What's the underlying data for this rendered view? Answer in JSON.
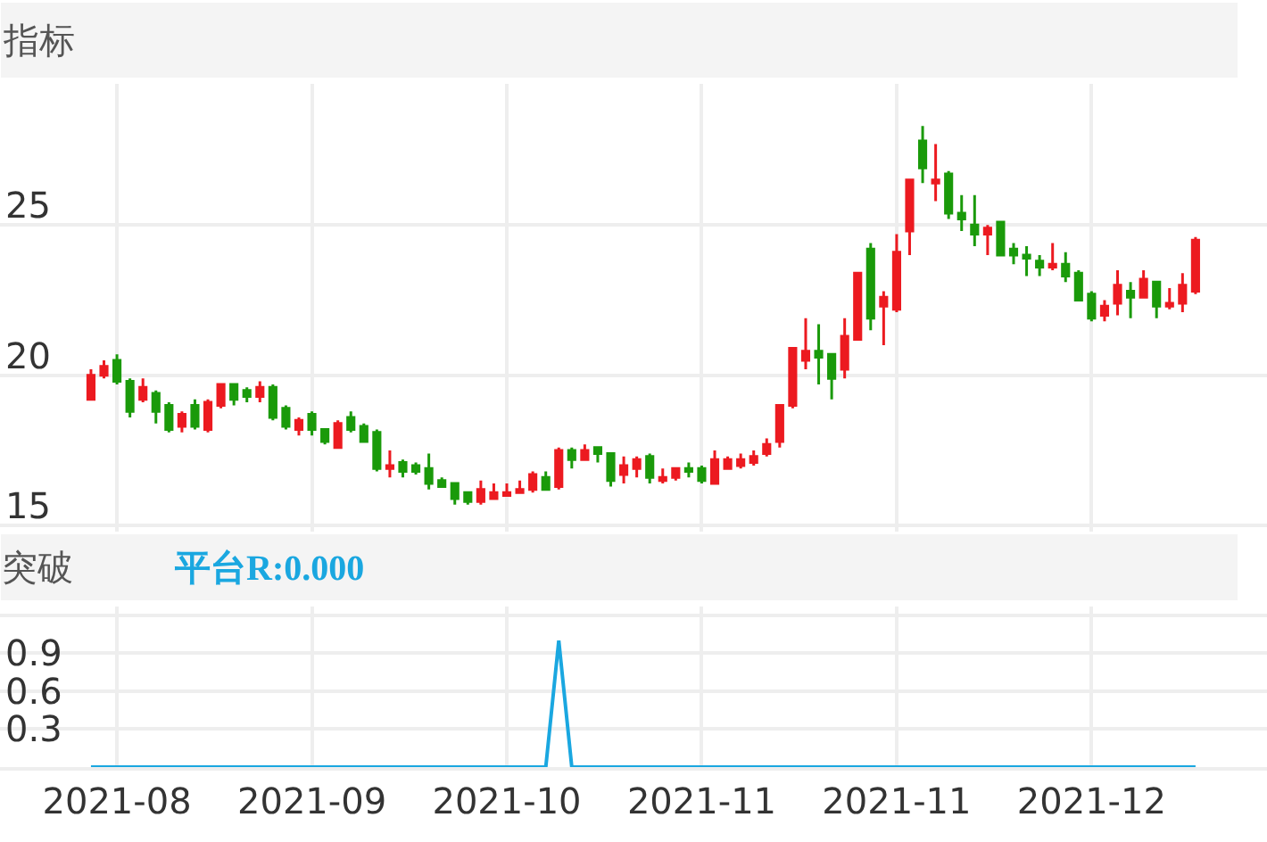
{
  "chart_data": [
    {
      "type": "candlestick",
      "title": "指标",
      "grid": true,
      "tick_labels": "y",
      "ylim": [
        14.8,
        29.7
      ],
      "yticks": [
        15,
        20,
        25
      ],
      "categories": [
        null,
        null,
        "2021-08",
        null,
        null,
        null,
        null,
        null,
        null,
        null,
        null,
        null,
        null,
        null,
        null,
        null,
        null,
        "2021-09",
        null,
        null,
        null,
        null,
        null,
        null,
        null,
        null,
        null,
        null,
        null,
        null,
        null,
        null,
        "2021-10",
        null,
        null,
        null,
        null,
        null,
        null,
        null,
        null,
        null,
        null,
        null,
        null,
        null,
        null,
        "2021-11",
        null,
        null,
        null,
        null,
        null,
        null,
        null,
        null,
        null,
        null,
        null,
        null,
        null,
        null,
        "2021-11",
        null,
        null,
        null,
        null,
        null,
        null,
        null,
        null,
        null,
        null,
        null,
        null,
        null,
        null,
        "2021-12",
        null,
        null,
        null,
        null,
        null,
        null,
        null,
        null
      ],
      "ohlc": [
        [
          19.2,
          20.2,
          19.2,
          20.0
        ],
        [
          20.0,
          20.5,
          19.9,
          20.3
        ],
        [
          20.5,
          20.7,
          19.7,
          19.8
        ],
        [
          19.8,
          19.9,
          18.6,
          18.8
        ],
        [
          19.2,
          19.9,
          19.1,
          19.6
        ],
        [
          19.4,
          19.5,
          18.4,
          18.8
        ],
        [
          19.0,
          19.1,
          18.1,
          18.2
        ],
        [
          18.3,
          18.8,
          18.1,
          18.7
        ],
        [
          19.0,
          19.2,
          18.2,
          18.3
        ],
        [
          18.2,
          19.2,
          18.1,
          19.1
        ],
        [
          19.0,
          19.7,
          18.9,
          19.7
        ],
        [
          19.7,
          19.7,
          19.0,
          19.2
        ],
        [
          19.5,
          19.6,
          19.1,
          19.3
        ],
        [
          19.3,
          19.8,
          19.1,
          19.6
        ],
        [
          19.6,
          19.7,
          18.5,
          18.6
        ],
        [
          18.9,
          19.0,
          18.2,
          18.3
        ],
        [
          18.2,
          18.6,
          18.0,
          18.5
        ],
        [
          18.7,
          18.8,
          18.0,
          18.2
        ],
        [
          18.2,
          18.2,
          17.7,
          17.8
        ],
        [
          17.6,
          18.5,
          17.6,
          18.4
        ],
        [
          18.6,
          18.8,
          18.1,
          18.2
        ],
        [
          18.3,
          18.4,
          17.8,
          17.8
        ],
        [
          18.1,
          18.2,
          16.8,
          16.9
        ],
        [
          16.9,
          17.5,
          16.6,
          17.0
        ],
        [
          17.1,
          17.2,
          16.6,
          16.8
        ],
        [
          17.0,
          17.1,
          16.7,
          16.8
        ],
        [
          16.9,
          17.4,
          16.2,
          16.4
        ],
        [
          16.5,
          16.6,
          16.3,
          16.3
        ],
        [
          16.4,
          16.4,
          15.7,
          15.9
        ],
        [
          16.1,
          16.1,
          15.7,
          15.8
        ],
        [
          15.8,
          16.5,
          15.7,
          16.2
        ],
        [
          15.9,
          16.4,
          15.9,
          16.1
        ],
        [
          16.0,
          16.4,
          16.0,
          16.1
        ],
        [
          16.1,
          16.5,
          16.1,
          16.2
        ],
        [
          16.2,
          16.8,
          16.1,
          16.7
        ],
        [
          16.6,
          16.8,
          16.2,
          16.2
        ],
        [
          16.3,
          17.6,
          16.2,
          17.5
        ],
        [
          17.5,
          17.6,
          16.9,
          17.2
        ],
        [
          17.2,
          17.7,
          17.2,
          17.5
        ],
        [
          17.6,
          17.6,
          17.1,
          17.4
        ],
        [
          17.4,
          17.4,
          16.3,
          16.5
        ],
        [
          16.7,
          17.3,
          16.4,
          17.0
        ],
        [
          16.9,
          17.3,
          16.6,
          17.2
        ],
        [
          17.3,
          17.4,
          16.4,
          16.6
        ],
        [
          16.5,
          16.9,
          16.4,
          16.6
        ],
        [
          16.6,
          16.9,
          16.5,
          16.9
        ],
        [
          16.9,
          17.1,
          16.6,
          16.8
        ],
        [
          16.9,
          17.0,
          16.4,
          16.5
        ],
        [
          16.4,
          17.5,
          16.4,
          17.2
        ],
        [
          16.9,
          17.3,
          16.9,
          17.2
        ],
        [
          17.0,
          17.4,
          16.9,
          17.2
        ],
        [
          17.1,
          17.5,
          17.0,
          17.3
        ],
        [
          17.4,
          17.9,
          17.3,
          17.7
        ],
        [
          17.8,
          19.0,
          17.6,
          19.0
        ],
        [
          19.0,
          20.9,
          18.9,
          20.9
        ],
        [
          20.5,
          21.9,
          20.2,
          20.8
        ],
        [
          20.8,
          21.7,
          19.7,
          20.6
        ],
        [
          20.7,
          20.7,
          19.2,
          19.9
        ],
        [
          20.2,
          21.9,
          19.9,
          21.3
        ],
        [
          21.2,
          23.4,
          21.2,
          23.4
        ],
        [
          24.2,
          24.4,
          21.5,
          21.9
        ],
        [
          22.3,
          22.8,
          21.0,
          22.6
        ],
        [
          22.2,
          24.7,
          22.1,
          24.1
        ],
        [
          24.8,
          26.5,
          24.0,
          26.5
        ],
        [
          27.8,
          28.3,
          26.4,
          26.9
        ],
        [
          26.4,
          27.7,
          25.8,
          26.5
        ],
        [
          26.7,
          26.8,
          25.2,
          25.4
        ],
        [
          25.4,
          26.0,
          24.8,
          25.2
        ],
        [
          25.0,
          26.0,
          24.3,
          24.7
        ],
        [
          24.7,
          25.0,
          24.0,
          24.9
        ],
        [
          25.1,
          25.1,
          24.0,
          24.0
        ],
        [
          24.2,
          24.4,
          23.7,
          24.0
        ],
        [
          24.0,
          24.3,
          23.3,
          23.9
        ],
        [
          23.8,
          24.0,
          23.3,
          23.6
        ],
        [
          23.6,
          24.4,
          23.5,
          23.7
        ],
        [
          23.7,
          24.1,
          23.1,
          23.3
        ],
        [
          23.4,
          23.5,
          22.5,
          22.5
        ],
        [
          22.7,
          22.8,
          21.8,
          21.9
        ],
        [
          22.0,
          22.5,
          21.8,
          22.3
        ],
        [
          22.4,
          23.5,
          22.0,
          23.0
        ],
        [
          22.8,
          23.1,
          21.9,
          22.6
        ],
        [
          22.6,
          23.5,
          22.6,
          23.2
        ],
        [
          23.1,
          23.1,
          21.9,
          22.3
        ],
        [
          22.3,
          22.9,
          22.2,
          22.4
        ],
        [
          22.4,
          23.4,
          22.1,
          23.0
        ],
        [
          22.8,
          24.6,
          22.7,
          24.5
        ]
      ]
    },
    {
      "type": "line",
      "title": "突破",
      "grid": true,
      "ylim": [
        0,
        1.27
      ],
      "yticks": [
        {
          "value": 0,
          "label": null
        },
        0.3,
        0.6,
        0.9,
        {
          "value": 1.2,
          "label": null
        }
      ],
      "categories": [
        null,
        null,
        "2021-08",
        null,
        null,
        null,
        null,
        null,
        null,
        null,
        null,
        null,
        null,
        null,
        null,
        null,
        null,
        "2021-09",
        null,
        null,
        null,
        null,
        null,
        null,
        null,
        null,
        null,
        null,
        null,
        null,
        null,
        null,
        "2021-10",
        null,
        null,
        null,
        null,
        null,
        null,
        null,
        null,
        null,
        null,
        null,
        null,
        null,
        null,
        "2021-11",
        null,
        null,
        null,
        null,
        null,
        null,
        null,
        null,
        null,
        null,
        null,
        null,
        null,
        null,
        "2021-11",
        null,
        null,
        null,
        null,
        null,
        null,
        null,
        null,
        null,
        null,
        null,
        null,
        null,
        null,
        "2021-12",
        null,
        null,
        null,
        null,
        null,
        null,
        null,
        null
      ],
      "series": [
        {
          "name": "平台R:0.000",
          "color": "#1aa7e0",
          "values": [
            0,
            0,
            0,
            0,
            0,
            0,
            0,
            0,
            0,
            0,
            0,
            0,
            0,
            0,
            0,
            0,
            0,
            0,
            0,
            0,
            0,
            0,
            0,
            0,
            0,
            0,
            0,
            0,
            0,
            0,
            0,
            0,
            0,
            0,
            0,
            0,
            1,
            0,
            0,
            0,
            0,
            0,
            0,
            0,
            0,
            0,
            0,
            0,
            0,
            0,
            0,
            0,
            0,
            0,
            0,
            0,
            0,
            0,
            0,
            0,
            0,
            0,
            0,
            0,
            0,
            0,
            0,
            0,
            0,
            0,
            0,
            0,
            0,
            0,
            0,
            0,
            0,
            0,
            0,
            0,
            0,
            0,
            0,
            0,
            0,
            0
          ]
        }
      ]
    }
  ]
}
